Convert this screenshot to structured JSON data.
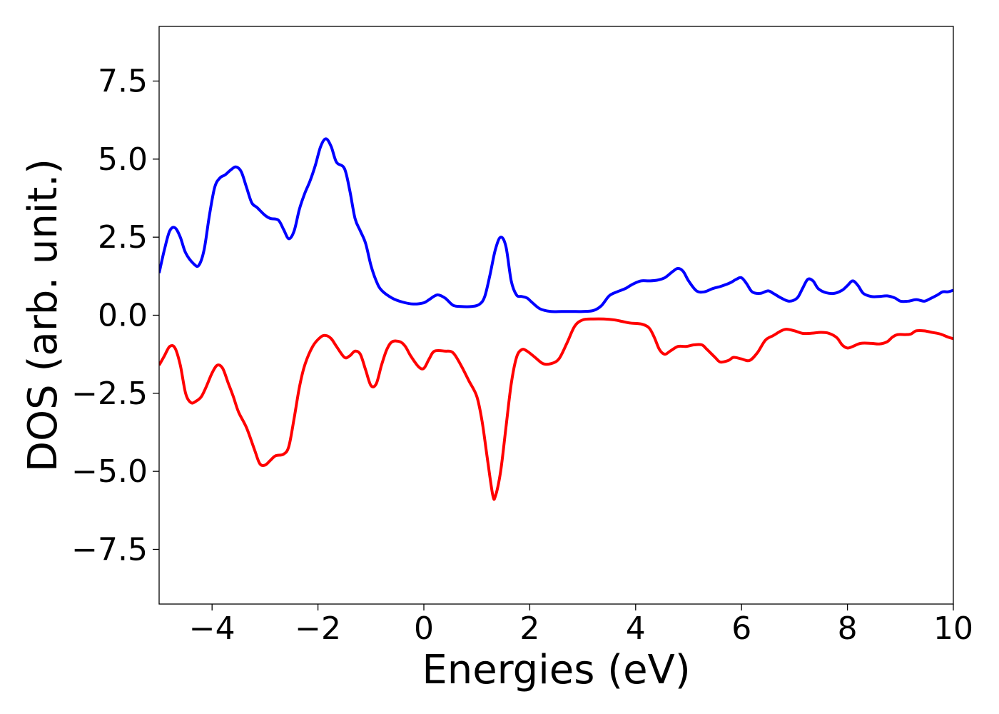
{
  "chart_data": {
    "type": "line",
    "title": "",
    "xlabel": "Energies (eV)",
    "ylabel": "DOS (arb. unit.)",
    "xlim": [
      -5,
      10
    ],
    "ylim": [
      -9.25,
      9.25
    ],
    "grid": false,
    "legend": "none",
    "x_ticks": [
      -4,
      -2,
      0,
      2,
      4,
      6,
      8,
      10
    ],
    "x_tick_labels": [
      "−4",
      "−2",
      "0",
      "2",
      "4",
      "6",
      "8",
      "10"
    ],
    "y_ticks": [
      7.5,
      5.0,
      2.5,
      0.0,
      -2.5,
      -5.0,
      -7.5
    ],
    "y_tick_labels": [
      "7.5",
      "5.0",
      "2.5",
      "0.0",
      "−2.5",
      "−5.0",
      "−7.5"
    ],
    "series": [
      {
        "color": "#0000ff",
        "points": [
          [
            -5.0,
            1.35
          ],
          [
            -4.9,
            2.1
          ],
          [
            -4.8,
            2.7
          ],
          [
            -4.7,
            2.8
          ],
          [
            -4.6,
            2.5
          ],
          [
            -4.5,
            2.0
          ],
          [
            -4.35,
            1.65
          ],
          [
            -4.25,
            1.6
          ],
          [
            -4.15,
            2.1
          ],
          [
            -4.05,
            3.2
          ],
          [
            -3.95,
            4.1
          ],
          [
            -3.85,
            4.4
          ],
          [
            -3.75,
            4.5
          ],
          [
            -3.65,
            4.65
          ],
          [
            -3.55,
            4.75
          ],
          [
            -3.45,
            4.6
          ],
          [
            -3.35,
            4.1
          ],
          [
            -3.25,
            3.6
          ],
          [
            -3.15,
            3.45
          ],
          [
            -3.0,
            3.2
          ],
          [
            -2.9,
            3.1
          ],
          [
            -2.75,
            3.05
          ],
          [
            -2.65,
            2.75
          ],
          [
            -2.55,
            2.45
          ],
          [
            -2.45,
            2.7
          ],
          [
            -2.35,
            3.4
          ],
          [
            -2.25,
            3.9
          ],
          [
            -2.15,
            4.3
          ],
          [
            -2.05,
            4.8
          ],
          [
            -1.95,
            5.4
          ],
          [
            -1.85,
            5.65
          ],
          [
            -1.75,
            5.4
          ],
          [
            -1.65,
            4.9
          ],
          [
            -1.5,
            4.7
          ],
          [
            -1.4,
            4.0
          ],
          [
            -1.3,
            3.1
          ],
          [
            -1.2,
            2.7
          ],
          [
            -1.1,
            2.3
          ],
          [
            -1.0,
            1.6
          ],
          [
            -0.9,
            1.1
          ],
          [
            -0.8,
            0.8
          ],
          [
            -0.6,
            0.55
          ],
          [
            -0.4,
            0.42
          ],
          [
            -0.2,
            0.36
          ],
          [
            0.0,
            0.4
          ],
          [
            0.1,
            0.5
          ],
          [
            0.25,
            0.65
          ],
          [
            0.4,
            0.55
          ],
          [
            0.55,
            0.32
          ],
          [
            0.7,
            0.28
          ],
          [
            0.9,
            0.28
          ],
          [
            1.05,
            0.35
          ],
          [
            1.15,
            0.6
          ],
          [
            1.25,
            1.3
          ],
          [
            1.35,
            2.1
          ],
          [
            1.45,
            2.5
          ],
          [
            1.55,
            2.2
          ],
          [
            1.65,
            1.1
          ],
          [
            1.75,
            0.65
          ],
          [
            1.85,
            0.6
          ],
          [
            1.95,
            0.55
          ],
          [
            2.05,
            0.4
          ],
          [
            2.2,
            0.2
          ],
          [
            2.4,
            0.12
          ],
          [
            2.6,
            0.12
          ],
          [
            2.8,
            0.12
          ],
          [
            3.0,
            0.12
          ],
          [
            3.2,
            0.15
          ],
          [
            3.35,
            0.3
          ],
          [
            3.5,
            0.62
          ],
          [
            3.65,
            0.75
          ],
          [
            3.8,
            0.85
          ],
          [
            3.95,
            1.0
          ],
          [
            4.1,
            1.1
          ],
          [
            4.25,
            1.1
          ],
          [
            4.4,
            1.12
          ],
          [
            4.55,
            1.2
          ],
          [
            4.7,
            1.4
          ],
          [
            4.8,
            1.5
          ],
          [
            4.9,
            1.4
          ],
          [
            5.0,
            1.1
          ],
          [
            5.15,
            0.78
          ],
          [
            5.3,
            0.75
          ],
          [
            5.45,
            0.85
          ],
          [
            5.6,
            0.92
          ],
          [
            5.7,
            0.98
          ],
          [
            5.8,
            1.05
          ],
          [
            5.9,
            1.15
          ],
          [
            6.0,
            1.2
          ],
          [
            6.1,
            1.0
          ],
          [
            6.2,
            0.75
          ],
          [
            6.35,
            0.7
          ],
          [
            6.5,
            0.78
          ],
          [
            6.6,
            0.7
          ],
          [
            6.75,
            0.55
          ],
          [
            6.9,
            0.45
          ],
          [
            7.05,
            0.55
          ],
          [
            7.15,
            0.85
          ],
          [
            7.25,
            1.15
          ],
          [
            7.35,
            1.1
          ],
          [
            7.45,
            0.85
          ],
          [
            7.6,
            0.72
          ],
          [
            7.75,
            0.7
          ],
          [
            7.9,
            0.8
          ],
          [
            8.0,
            0.95
          ],
          [
            8.1,
            1.1
          ],
          [
            8.2,
            0.95
          ],
          [
            8.3,
            0.7
          ],
          [
            8.45,
            0.6
          ],
          [
            8.6,
            0.6
          ],
          [
            8.75,
            0.62
          ],
          [
            8.9,
            0.55
          ],
          [
            9.0,
            0.45
          ],
          [
            9.15,
            0.45
          ],
          [
            9.3,
            0.5
          ],
          [
            9.45,
            0.45
          ],
          [
            9.55,
            0.52
          ],
          [
            9.7,
            0.65
          ],
          [
            9.8,
            0.75
          ],
          [
            9.9,
            0.75
          ],
          [
            10.0,
            0.8
          ]
        ]
      },
      {
        "color": "#ff0000",
        "points": [
          [
            -5.0,
            -1.6
          ],
          [
            -4.9,
            -1.3
          ],
          [
            -4.8,
            -1.0
          ],
          [
            -4.7,
            -1.05
          ],
          [
            -4.6,
            -1.6
          ],
          [
            -4.5,
            -2.5
          ],
          [
            -4.4,
            -2.8
          ],
          [
            -4.3,
            -2.75
          ],
          [
            -4.2,
            -2.6
          ],
          [
            -4.1,
            -2.25
          ],
          [
            -4.0,
            -1.85
          ],
          [
            -3.9,
            -1.6
          ],
          [
            -3.8,
            -1.7
          ],
          [
            -3.7,
            -2.15
          ],
          [
            -3.6,
            -2.6
          ],
          [
            -3.5,
            -3.1
          ],
          [
            -3.35,
            -3.6
          ],
          [
            -3.2,
            -4.3
          ],
          [
            -3.1,
            -4.75
          ],
          [
            -3.0,
            -4.8
          ],
          [
            -2.9,
            -4.65
          ],
          [
            -2.8,
            -4.5
          ],
          [
            -2.65,
            -4.45
          ],
          [
            -2.55,
            -4.2
          ],
          [
            -2.45,
            -3.3
          ],
          [
            -2.35,
            -2.3
          ],
          [
            -2.25,
            -1.6
          ],
          [
            -2.1,
            -1.0
          ],
          [
            -1.95,
            -0.7
          ],
          [
            -1.85,
            -0.65
          ],
          [
            -1.75,
            -0.75
          ],
          [
            -1.65,
            -1.0
          ],
          [
            -1.5,
            -1.35
          ],
          [
            -1.4,
            -1.3
          ],
          [
            -1.3,
            -1.15
          ],
          [
            -1.2,
            -1.25
          ],
          [
            -1.1,
            -1.75
          ],
          [
            -1.0,
            -2.25
          ],
          [
            -0.9,
            -2.2
          ],
          [
            -0.8,
            -1.6
          ],
          [
            -0.7,
            -1.1
          ],
          [
            -0.6,
            -0.85
          ],
          [
            -0.45,
            -0.85
          ],
          [
            -0.35,
            -1.0
          ],
          [
            -0.25,
            -1.3
          ],
          [
            -0.1,
            -1.65
          ],
          [
            0.0,
            -1.7
          ],
          [
            0.1,
            -1.4
          ],
          [
            0.2,
            -1.15
          ],
          [
            0.4,
            -1.15
          ],
          [
            0.55,
            -1.2
          ],
          [
            0.7,
            -1.6
          ],
          [
            0.85,
            -2.1
          ],
          [
            1.0,
            -2.6
          ],
          [
            1.1,
            -3.4
          ],
          [
            1.2,
            -4.6
          ],
          [
            1.3,
            -5.75
          ],
          [
            1.35,
            -5.8
          ],
          [
            1.45,
            -5.0
          ],
          [
            1.55,
            -3.6
          ],
          [
            1.65,
            -2.2
          ],
          [
            1.75,
            -1.35
          ],
          [
            1.85,
            -1.1
          ],
          [
            1.95,
            -1.15
          ],
          [
            2.1,
            -1.35
          ],
          [
            2.25,
            -1.55
          ],
          [
            2.4,
            -1.55
          ],
          [
            2.55,
            -1.4
          ],
          [
            2.7,
            -0.9
          ],
          [
            2.85,
            -0.35
          ],
          [
            3.0,
            -0.15
          ],
          [
            3.2,
            -0.12
          ],
          [
            3.4,
            -0.12
          ],
          [
            3.6,
            -0.15
          ],
          [
            3.75,
            -0.2
          ],
          [
            3.9,
            -0.25
          ],
          [
            4.1,
            -0.28
          ],
          [
            4.25,
            -0.4
          ],
          [
            4.35,
            -0.7
          ],
          [
            4.45,
            -1.1
          ],
          [
            4.55,
            -1.25
          ],
          [
            4.65,
            -1.15
          ],
          [
            4.8,
            -1.0
          ],
          [
            4.95,
            -1.0
          ],
          [
            5.1,
            -0.95
          ],
          [
            5.25,
            -0.95
          ],
          [
            5.35,
            -1.1
          ],
          [
            5.5,
            -1.35
          ],
          [
            5.6,
            -1.5
          ],
          [
            5.75,
            -1.45
          ],
          [
            5.85,
            -1.35
          ],
          [
            6.0,
            -1.4
          ],
          [
            6.15,
            -1.45
          ],
          [
            6.3,
            -1.2
          ],
          [
            6.45,
            -0.8
          ],
          [
            6.6,
            -0.65
          ],
          [
            6.75,
            -0.5
          ],
          [
            6.85,
            -0.45
          ],
          [
            7.0,
            -0.5
          ],
          [
            7.15,
            -0.58
          ],
          [
            7.3,
            -0.58
          ],
          [
            7.5,
            -0.55
          ],
          [
            7.65,
            -0.58
          ],
          [
            7.8,
            -0.72
          ],
          [
            7.9,
            -0.95
          ],
          [
            8.0,
            -1.05
          ],
          [
            8.1,
            -1.0
          ],
          [
            8.25,
            -0.9
          ],
          [
            8.45,
            -0.9
          ],
          [
            8.6,
            -0.92
          ],
          [
            8.75,
            -0.85
          ],
          [
            8.85,
            -0.7
          ],
          [
            8.95,
            -0.62
          ],
          [
            9.1,
            -0.62
          ],
          [
            9.2,
            -0.6
          ],
          [
            9.3,
            -0.5
          ],
          [
            9.45,
            -0.5
          ],
          [
            9.6,
            -0.55
          ],
          [
            9.75,
            -0.6
          ],
          [
            9.9,
            -0.7
          ],
          [
            10.0,
            -0.75
          ]
        ]
      }
    ]
  }
}
